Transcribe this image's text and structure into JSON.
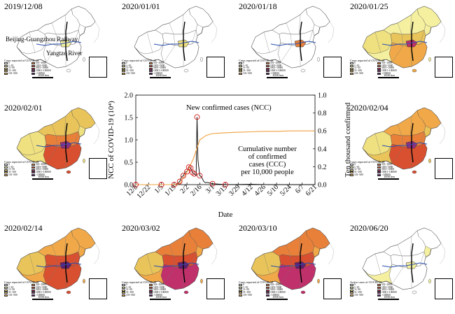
{
  "panels": [
    {
      "date": "2019/12/08",
      "legend_title": "Cases reported of COVID-19",
      "scale": "1000 km"
    },
    {
      "date": "2020/01/01",
      "legend_title": "Cases reported of COVID-19",
      "scale": "1000 km"
    },
    {
      "date": "2020/01/18",
      "legend_title": "Cases reported of COVID-19",
      "scale": "1000 km"
    },
    {
      "date": "2020/01/25",
      "legend_title": "Cases reported of COVID-19",
      "scale": "1000 km"
    },
    {
      "date": "2020/02/01",
      "legend_title": "Cases reported of COVID-19",
      "scale": "1000 km"
    },
    {
      "date": "2020/02/04",
      "legend_title": "Cases reported of COVID-19",
      "scale": "1000 km"
    },
    {
      "date": "2020/02/14",
      "legend_title": "Cases reported of COVID-19",
      "scale": "1000 km"
    },
    {
      "date": "2020/03/02",
      "legend_title": "Cases reported of COVID-19",
      "scale": "1000 km"
    },
    {
      "date": "2020/03/10",
      "legend_title": "Cases reported of COVID-19",
      "scale": "1000 km"
    },
    {
      "date": "2020/06/20",
      "legend_title": "Active cases of COVID-19",
      "scale": "1000 km"
    }
  ],
  "map_annotations": {
    "railway": "Beijing-Guangzhou Railway",
    "river": "Yangtze River"
  },
  "legend_bins": [
    "0",
    "1~10",
    "11~50",
    "51~100",
    "101~500",
    "501~1000",
    "1001~5000",
    "5001~10000",
    "10001~100000",
    ">100000"
  ],
  "legend_colors": [
    "#ffffff",
    "#f5f0a0",
    "#efe080",
    "#e8c45a",
    "#f0a848",
    "#e8803a",
    "#d85030",
    "#c0306a",
    "#903080",
    "#602070"
  ],
  "panel_fills": [
    {
      "base": "#ffffff",
      "north": "#ffffff",
      "west": "#ffffff",
      "center": "#ffffff",
      "south": "#ffffff",
      "hubei": "#f5f0a0"
    },
    {
      "base": "#ffffff",
      "north": "#ffffff",
      "west": "#ffffff",
      "center": "#ffffff",
      "south": "#ffffff",
      "hubei": "#efe080"
    },
    {
      "base": "#ffffff",
      "north": "#ffffff",
      "west": "#ffffff",
      "center": "#ffffff",
      "south": "#ffffff",
      "hubei": "#e8803a"
    },
    {
      "base": "#f5f0a0",
      "north": "#f5f0a0",
      "west": "#efe080",
      "center": "#e8c45a",
      "south": "#f0a848",
      "hubei": "#c0306a"
    },
    {
      "base": "#efe080",
      "north": "#e8c45a",
      "west": "#efe080",
      "center": "#e8803a",
      "south": "#d85030",
      "hubei": "#903080"
    },
    {
      "base": "#e8c45a",
      "north": "#f0a848",
      "west": "#efe080",
      "center": "#e8803a",
      "south": "#d85030",
      "hubei": "#903080"
    },
    {
      "base": "#f0a848",
      "north": "#f0a848",
      "west": "#e8c45a",
      "center": "#d85030",
      "south": "#d85030",
      "hubei": "#602070"
    },
    {
      "base": "#f0a848",
      "north": "#e8803a",
      "west": "#e8c45a",
      "center": "#d85030",
      "south": "#c0306a",
      "hubei": "#602070"
    },
    {
      "base": "#f0a848",
      "north": "#e8803a",
      "west": "#e8c45a",
      "center": "#d85030",
      "south": "#c0306a",
      "hubei": "#602070"
    },
    {
      "base": "#f5f0a0",
      "north": "#ffffff",
      "west": "#ffffff",
      "center": "#ffffff",
      "south": "#ffffff",
      "hubei": "#f5f0a0"
    }
  ],
  "chart_data": {
    "type": "line",
    "xlabel": "Date",
    "ylabel": "NCC of COVID-19 (10⁴)",
    "y2label": "Ten thousand confirmed",
    "ylim": [
      0,
      2.0
    ],
    "y2lim": [
      0,
      1.0
    ],
    "yticks": [
      "0.0",
      "0.5",
      "1.0",
      "1.5",
      "2.0"
    ],
    "y2ticks": [
      "0.0",
      "0.2",
      "0.4",
      "0.6",
      "0.8",
      "1.0"
    ],
    "xtick_labels": [
      "12/8",
      "12/22",
      "1/5",
      "1/19",
      "2/2",
      "2/16",
      "3/1",
      "3/15",
      "3/29",
      "4/12",
      "4/26",
      "5/10",
      "5/24",
      "6/7",
      "6/21"
    ],
    "annotation_ncc": "New confirmed cases (NCC)",
    "annotation_ccc": [
      "Cumulative number",
      "of confirmed",
      "cases (CCC)",
      "per 10,000 people"
    ],
    "series": [
      {
        "name": "New confirmed cases (NCC)",
        "color": "#000000",
        "x": [
          "12/8",
          "12/22",
          "1/5",
          "1/19",
          "1/21",
          "1/23",
          "1/25",
          "1/27",
          "1/29",
          "1/31",
          "2/2",
          "2/4",
          "2/6",
          "2/8",
          "2/10",
          "2/12",
          "2/13",
          "2/14",
          "2/16",
          "2/18",
          "2/20",
          "2/22",
          "2/24",
          "2/26",
          "2/28",
          "3/1",
          "3/15",
          "3/29",
          "4/12",
          "4/26",
          "5/10",
          "5/24",
          "6/7",
          "6/21"
        ],
        "values": [
          0.0,
          0.0,
          0.0,
          0.002,
          0.01,
          0.03,
          0.07,
          0.17,
          0.2,
          0.28,
          0.29,
          0.39,
          0.37,
          0.27,
          0.24,
          0.2,
          1.51,
          0.55,
          0.2,
          0.17,
          0.08,
          0.04,
          0.05,
          0.04,
          0.03,
          0.02,
          0.001,
          0.003,
          0.01,
          0.002,
          0.0,
          0.0,
          0.0,
          0.0
        ]
      },
      {
        "name": "Cumulative number of confirmed cases (CCC) per 10,000 people",
        "color": "#f0a040",
        "x": [
          "12/8",
          "1/19",
          "1/25",
          "2/2",
          "2/9",
          "2/16",
          "2/23",
          "3/1",
          "3/8",
          "3/15",
          "3/29",
          "4/12",
          "4/26",
          "5/10",
          "5/24",
          "6/7",
          "6/21"
        ],
        "values": [
          0.0,
          0.0,
          0.01,
          0.14,
          0.29,
          0.5,
          0.55,
          0.57,
          0.575,
          0.58,
          0.585,
          0.59,
          0.595,
          0.595,
          0.6,
          0.6,
          0.6
        ]
      }
    ],
    "markers": {
      "x": [
        "12/8",
        "1/5",
        "1/19",
        "1/25",
        "1/29",
        "2/2",
        "2/4",
        "2/6",
        "2/8",
        "2/10",
        "2/13",
        "2/16",
        "3/1",
        "3/15"
      ],
      "values": [
        0.0,
        0.0,
        0.0,
        0.07,
        0.2,
        0.29,
        0.39,
        0.37,
        0.27,
        0.24,
        1.51,
        0.2,
        0.02,
        0.0
      ]
    }
  }
}
